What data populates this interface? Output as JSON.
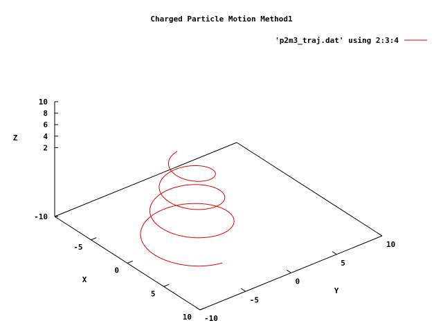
{
  "chart_data": {
    "type": "line",
    "title": "Charged Particle Motion Method1",
    "legend": {
      "label": "'p2m3_traj.dat' using 2:3:4",
      "placement": "top-right"
    },
    "xlabel": "X",
    "ylabel": "Y",
    "zlabel": "Z",
    "xlim": [
      -10,
      10
    ],
    "ylim": [
      -10,
      10
    ],
    "zlim": [
      -10,
      10
    ],
    "x_ticks": [
      "-5",
      "0",
      "5",
      "10"
    ],
    "y_ticks": [
      "-10",
      "-5",
      "0",
      "5",
      "10"
    ],
    "z_ticks": [
      "-10",
      "2",
      "4",
      "6",
      "8",
      "10"
    ],
    "grid": false,
    "colors": {
      "series": "#e00000",
      "axes": "#000000"
    },
    "series": [
      {
        "helix": {
          "center_x": 0.53,
          "center_y": -3.58,
          "z_start": -10,
          "z_end": 4.4,
          "turns": 3.5,
          "radius_start": 4.5,
          "radius_end": 1.7
        }
      }
    ]
  }
}
